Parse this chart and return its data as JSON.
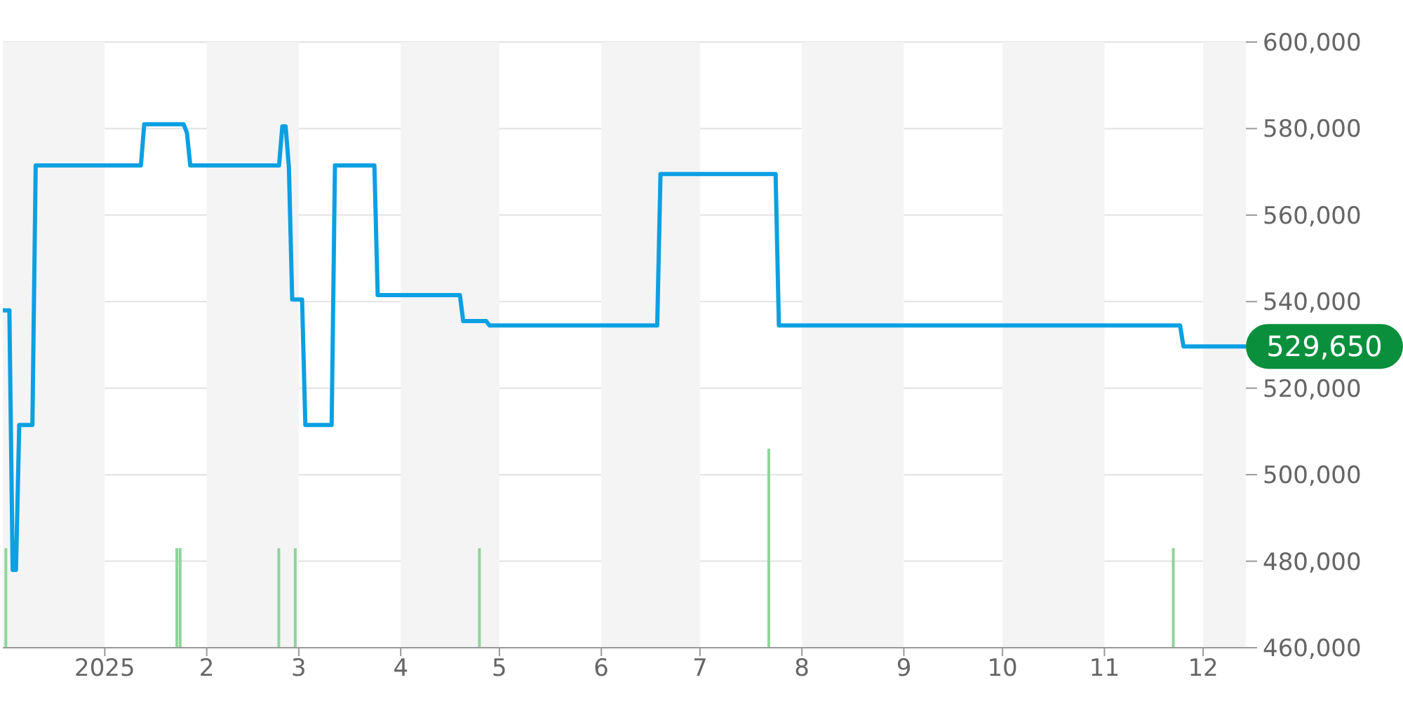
{
  "chart_data": {
    "type": "line",
    "marker": "none",
    "grid": "y",
    "annotations": [
      {
        "text": "529,650",
        "x": "2025-12-14",
        "y": 529650
      }
    ],
    "xlim": [
      "2024-12-01",
      "2025-12-14"
    ],
    "xticks": [
      {
        "value": "2025-01-01",
        "label": "2025"
      },
      {
        "value": "2025-02-01",
        "label": "2"
      },
      {
        "value": "2025-03-01",
        "label": "3"
      },
      {
        "value": "2025-04-01",
        "label": "4"
      },
      {
        "value": "2025-05-01",
        "label": "5"
      },
      {
        "value": "2025-06-01",
        "label": "6"
      },
      {
        "value": "2025-07-01",
        "label": "7"
      },
      {
        "value": "2025-08-01",
        "label": "8"
      },
      {
        "value": "2025-09-01",
        "label": "9"
      },
      {
        "value": "2025-10-01",
        "label": "10"
      },
      {
        "value": "2025-11-01",
        "label": "11"
      },
      {
        "value": "2025-12-01",
        "label": "12"
      }
    ],
    "ylim": [
      460000,
      600000
    ],
    "yticks": [
      {
        "value": 460000,
        "label": "460,000"
      },
      {
        "value": 480000,
        "label": "480,000"
      },
      {
        "value": 500000,
        "label": "500,000"
      },
      {
        "value": 520000,
        "label": "520,000"
      },
      {
        "value": 540000,
        "label": "540,000"
      },
      {
        "value": 560000,
        "label": "560,000"
      },
      {
        "value": 580000,
        "label": "580,000"
      },
      {
        "value": 600000,
        "label": "600,000"
      }
    ],
    "bands": [
      {
        "axis": "x",
        "from": "2024-12-01",
        "to": "2025-01-01",
        "color": "#f4f4f4"
      },
      {
        "axis": "x",
        "from": "2025-02-01",
        "to": "2025-03-01",
        "color": "#f4f4f4"
      },
      {
        "axis": "x",
        "from": "2025-04-01",
        "to": "2025-05-01",
        "color": "#f4f4f4"
      },
      {
        "axis": "x",
        "from": "2025-06-01",
        "to": "2025-07-01",
        "color": "#f4f4f4"
      },
      {
        "axis": "x",
        "from": "2025-08-01",
        "to": "2025-09-01",
        "color": "#f4f4f4"
      },
      {
        "axis": "x",
        "from": "2025-10-01",
        "to": "2025-11-01",
        "color": "#f4f4f4"
      },
      {
        "axis": "x",
        "from": "2025-12-01",
        "to": "2025-12-14",
        "color": "#f4f4f4"
      }
    ],
    "series": [
      {
        "type": "bar",
        "color": "#8fd49a",
        "x": [
          "2024-12-02",
          "2025-01-23",
          "2025-01-24",
          "2025-02-23",
          "2025-02-28",
          "2025-04-25",
          "2025-07-22",
          "2025-11-22"
        ],
        "values": [
          483000,
          483000,
          483000,
          483000,
          483000,
          483000,
          506000,
          483000
        ]
      },
      {
        "color": "#0ba0e2",
        "x": [
          "2024-12-01",
          "2024-12-03",
          "2024-12-04",
          "2024-12-05",
          "2024-12-06",
          "2024-12-10",
          "2024-12-11",
          "2025-01-12",
          "2025-01-13",
          "2025-01-25",
          "2025-01-26",
          "2025-01-27",
          "2025-02-23",
          "2025-02-24",
          "2025-02-25",
          "2025-02-26",
          "2025-02-27",
          "2025-03-02",
          "2025-03-03",
          "2025-03-11",
          "2025-03-12",
          "2025-03-24",
          "2025-03-25",
          "2025-04-19",
          "2025-04-20",
          "2025-04-27",
          "2025-04-28",
          "2025-06-18",
          "2025-06-19",
          "2025-07-24",
          "2025-07-25",
          "2025-11-24",
          "2025-11-25",
          "2025-12-14"
        ],
        "values": [
          538000,
          538000,
          478000,
          478000,
          511500,
          511500,
          571500,
          571500,
          581000,
          581000,
          579000,
          571500,
          571500,
          580500,
          580500,
          571000,
          540500,
          540500,
          511500,
          511500,
          571500,
          571500,
          541500,
          541500,
          535500,
          535500,
          534500,
          534500,
          569500,
          569500,
          534500,
          534500,
          529650,
          529650
        ]
      }
    ]
  }
}
